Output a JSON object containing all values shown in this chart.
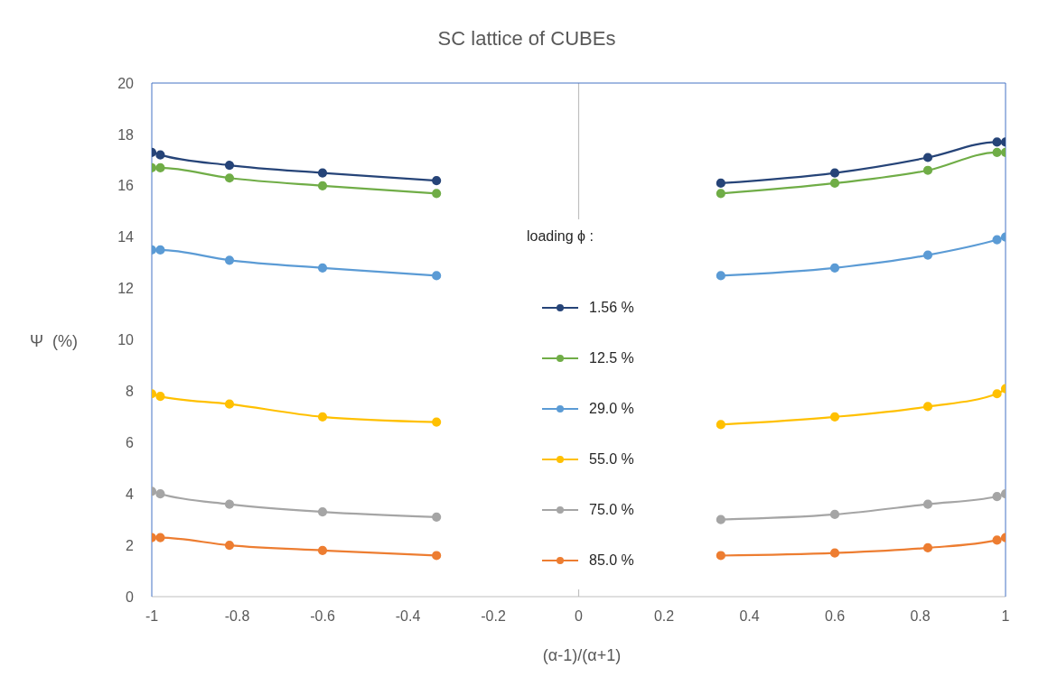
{
  "chart_data": {
    "type": "line",
    "title": "SC lattice of CUBEs",
    "xlabel": "(α-1)/(α+1)",
    "ylabel": "Ψ  (%)",
    "legend_title": "loading   ϕ :",
    "x": [
      -1,
      -0.98,
      -0.818,
      -0.6,
      -0.333,
      0,
      0.333,
      0.6,
      0.818,
      0.98,
      1
    ],
    "series": [
      {
        "name": "1.56 %",
        "color": "#264478",
        "values": [
          17.3,
          17.2,
          16.8,
          16.5,
          16.2,
          null,
          16.1,
          16.5,
          17.1,
          17.7,
          17.7
        ]
      },
      {
        "name": "12.5 %",
        "color": "#70ad47",
        "values": [
          16.7,
          16.7,
          16.3,
          16.0,
          15.7,
          null,
          15.7,
          16.1,
          16.6,
          17.3,
          17.3
        ]
      },
      {
        "name": "29.0 %",
        "color": "#5b9bd5",
        "values": [
          13.5,
          13.5,
          13.1,
          12.8,
          12.5,
          null,
          12.5,
          12.8,
          13.3,
          13.9,
          14.0
        ]
      },
      {
        "name": "55.0 %",
        "color": "#ffc000",
        "values": [
          7.9,
          7.8,
          7.5,
          7.0,
          6.8,
          null,
          6.7,
          7.0,
          7.4,
          7.9,
          8.1
        ]
      },
      {
        "name": "75.0 %",
        "color": "#a5a5a5",
        "values": [
          4.1,
          4.0,
          3.6,
          3.3,
          3.1,
          null,
          3.0,
          3.2,
          3.6,
          3.9,
          4.0
        ]
      },
      {
        "name": "85.0 %",
        "color": "#ed7d31",
        "values": [
          2.3,
          2.3,
          2.0,
          1.8,
          1.6,
          null,
          1.6,
          1.7,
          1.9,
          2.2,
          2.3
        ]
      }
    ],
    "xlim": [
      -1,
      1
    ],
    "xticks": [
      -1,
      -0.8,
      -0.6,
      -0.4,
      -0.2,
      0,
      0.2,
      0.4,
      0.6,
      0.8,
      1
    ],
    "ylim": [
      0,
      20
    ],
    "yticks": [
      0,
      2,
      4,
      6,
      8,
      10,
      12,
      14,
      16,
      18,
      20
    ],
    "ref_lines": [
      {
        "axis": "x",
        "value": 0,
        "color": "#bfbfbf"
      }
    ],
    "grid": false,
    "legend": "center",
    "marker": "circle",
    "line_style": "solid"
  }
}
